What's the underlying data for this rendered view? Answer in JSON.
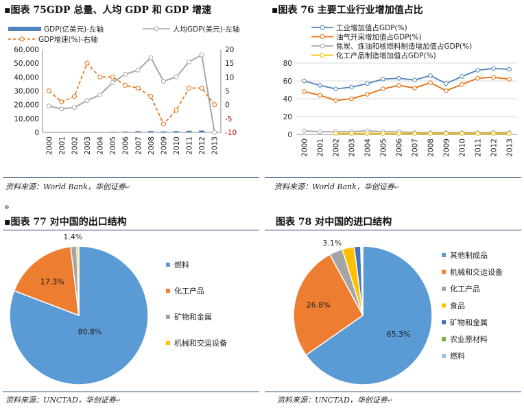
{
  "panels": {
    "p75": {
      "prefix": "▪",
      "title": "图表 75GDP 总量、人均 GDP 和 GDP 增速",
      "source": "资料来源：World Bank，华创证券",
      "legend": [
        "GDP(亿美元)-左轴",
        "人均GDP(美元)-左轴",
        "GDP增速(%)-右轴"
      ],
      "colors": {
        "bar": "#4f81bd",
        "per_capita": "#a6a6a6",
        "growth": "#e46c0a"
      },
      "chart_data": {
        "type": "bar+line",
        "categories": [
          "2000",
          "2001",
          "2002",
          "2003",
          "2004",
          "2005",
          "2006",
          "2007",
          "2008",
          "2009",
          "2010",
          "2011",
          "2012",
          "2013"
        ],
        "series": [
          {
            "name": "GDP(亿美元)-左轴",
            "axis": "left",
            "type": "bar",
            "values": [
              100,
              100,
              120,
              150,
              200,
              380,
              600,
              800,
              900,
              700,
              900,
              1100,
              1300,
              0
            ]
          },
          {
            "name": "人均GDP(美元)-左轴",
            "axis": "left",
            "type": "line",
            "values": [
              19000,
              17000,
              18000,
              23000,
              27000,
              36000,
              42000,
              45000,
              54000,
              37000,
              40000,
              51000,
              56000,
              0
            ]
          },
          {
            "name": "GDP增速(%)-右轴",
            "axis": "right",
            "type": "line-dashed",
            "values": [
              5,
              1,
              3,
              15,
              10,
              10,
              7,
              6,
              3,
              -7,
              -2,
              6,
              6,
              0
            ]
          }
        ],
        "ylim_left": [
          0,
          60000
        ],
        "yticks_left": [
          "0",
          "10,000",
          "20,000",
          "30,000",
          "40,000",
          "50,000",
          "60,000"
        ],
        "ylim_right": [
          -10,
          20
        ],
        "yticks_right": [
          "-10",
          "-5",
          "0",
          "5",
          "10",
          "15",
          "20"
        ]
      }
    },
    "p76": {
      "prefix": "▪",
      "title": "图表 76 主要工业行业增加值占比",
      "source": "资料来源：World Bank，华创证券",
      "legend": [
        "工业增加值占GDP(%)",
        "油气开采增加值占GDP(%)",
        "焦炭、炼油和核燃料制造增加值占GDP(%)",
        "化工产品制造增加值占GDP(%)"
      ],
      "colors": [
        "#4f81bd",
        "#e46c0a",
        "#a6a6a6",
        "#f5c000"
      ],
      "chart_data": {
        "type": "line",
        "categories": [
          "2000",
          "2001",
          "2002",
          "2003",
          "2004",
          "2005",
          "2006",
          "2007",
          "2008",
          "2009",
          "2010",
          "2011",
          "2012",
          "2013"
        ],
        "series": [
          {
            "name": "工业增加值占GDP(%)",
            "values": [
              60,
              55,
              51,
              53,
              57,
              62,
              63,
              61,
              66,
              57,
              65,
              72,
              74,
              73
            ]
          },
          {
            "name": "油气开采增加值占GDP(%)",
            "values": [
              48,
              44,
              38,
              40,
              45,
              51,
              55,
              52,
              58,
              49,
              56,
              63,
              64,
              62
            ]
          },
          {
            "name": "焦炭、炼油和核燃料制造增加值占GDP(%)",
            "values": [
              4,
              3,
              3,
              3,
              4,
              3,
              3,
              2,
              2,
              2,
              2,
              2,
              2,
              2
            ]
          },
          {
            "name": "化工产品制造增加值占GDP(%)",
            "values": [
              null,
              null,
              1,
              1,
              1,
              1,
              1,
              1,
              1,
              1,
              1,
              1,
              1,
              1
            ]
          }
        ],
        "ylim": [
          0,
          80
        ],
        "yticks": [
          "0",
          "20",
          "40",
          "60",
          "80"
        ]
      }
    },
    "p77": {
      "prefix": "▪",
      "title": "图表 77 对中国的出口结构",
      "source": "资料来源：UNCTAD，华创证券",
      "chart_data": {
        "type": "pie",
        "labels": [
          "燃料",
          "化工产品",
          "矿物和金属",
          "机械和交运设备"
        ],
        "values": [
          80.8,
          17.3,
          1.4,
          0.5
        ],
        "data_labels": [
          "80.8%",
          "17.3%",
          "1.4%",
          ""
        ],
        "colors": [
          "#5b9bd5",
          "#ed7d31",
          "#a5a5a5",
          "#ffc000"
        ]
      }
    },
    "p78": {
      "prefix": "",
      "title": "图表 78 对中国的进口结构",
      "source": "资料来源：UNCTAD，华创证券",
      "chart_data": {
        "type": "pie",
        "labels": [
          "其他制成品",
          "机械和交运设备",
          "化工产品",
          "食品",
          "矿物和金属",
          "农业原材料",
          "燃料"
        ],
        "values": [
          65.3,
          26.8,
          3.1,
          2.8,
          1.5,
          0.3,
          0.2
        ],
        "data_labels": [
          "65.3%",
          "26.8%",
          "3.1%",
          "",
          "",
          "",
          ""
        ],
        "colors": [
          "#5b9bd5",
          "#ed7d31",
          "#a5a5a5",
          "#ffc000",
          "#4472c4",
          "#70ad47",
          "#9dc3e6"
        ]
      }
    }
  }
}
